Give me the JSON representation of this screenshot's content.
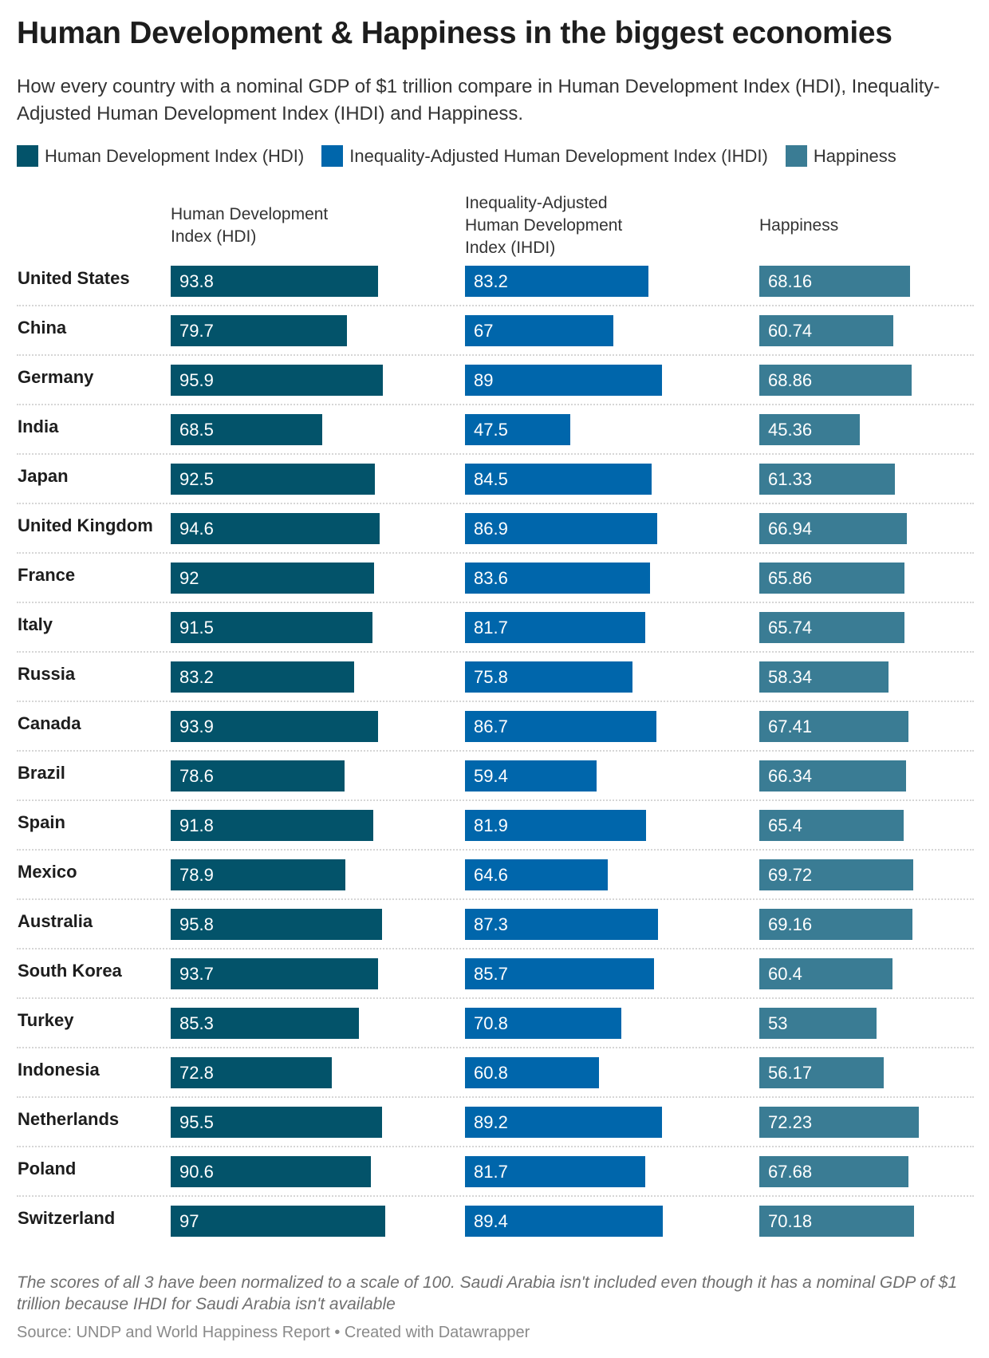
{
  "title": "Human Development & Happiness in the biggest economies",
  "subtitle": "How every country with a nominal GDP of $1 trillion compare in Human Development Index (HDI), Inequality-Adjusted Human Development Index (IHDI) and Happiness.",
  "legend": [
    {
      "label": "Human Development Index (HDI)",
      "color": "#03536a"
    },
    {
      "label": "Inequality-Adjusted Human Development Index (IHDI)",
      "color": "#0066ab"
    },
    {
      "label": "Happiness",
      "color": "#3a7c94"
    }
  ],
  "columns": [
    "Human Development Index (HDI)",
    "Inequality-Adjusted Human Development Index (IHDI)",
    "Happiness"
  ],
  "chart_data": {
    "type": "bar",
    "orientation": "horizontal",
    "xlim": [
      0,
      100
    ],
    "categories": [
      "United States",
      "China",
      "Germany",
      "India",
      "Japan",
      "United Kingdom",
      "France",
      "Italy",
      "Russia",
      "Canada",
      "Brazil",
      "Spain",
      "Mexico",
      "Australia",
      "South Korea",
      "Turkey",
      "Indonesia",
      "Netherlands",
      "Poland",
      "Switzerland"
    ],
    "series": [
      {
        "name": "Human Development Index (HDI)",
        "color": "#03536a",
        "values": [
          "93.8",
          "79.7",
          "95.9",
          "68.5",
          "92.5",
          "94.6",
          "92",
          "91.5",
          "83.2",
          "93.9",
          "78.6",
          "91.8",
          "78.9",
          "95.8",
          "93.7",
          "85.3",
          "72.8",
          "95.5",
          "90.6",
          "97"
        ]
      },
      {
        "name": "Inequality-Adjusted Human Development Index (IHDI)",
        "color": "#0066ab",
        "values": [
          "83.2",
          "67",
          "89",
          "47.5",
          "84.5",
          "86.9",
          "83.6",
          "81.7",
          "75.8",
          "86.7",
          "59.4",
          "81.9",
          "64.6",
          "87.3",
          "85.7",
          "70.8",
          "60.8",
          "89.2",
          "81.7",
          "89.4"
        ]
      },
      {
        "name": "Happiness",
        "color": "#3a7c94",
        "values": [
          "68.16",
          "60.74",
          "68.86",
          "45.36",
          "61.33",
          "66.94",
          "65.86",
          "65.74",
          "58.34",
          "67.41",
          "66.34",
          "65.4",
          "69.72",
          "69.16",
          "60.4",
          "53",
          "56.17",
          "72.23",
          "67.68",
          "70.18"
        ]
      }
    ]
  },
  "note": "The scores of all 3 have been normalized to a scale of 100. Saudi Arabia isn't included even though it has a nominal GDP of $1 trillion because IHDI for Saudi Arabia isn't available",
  "source": "Source: UNDP and World Happiness Report • Created with Datawrapper"
}
